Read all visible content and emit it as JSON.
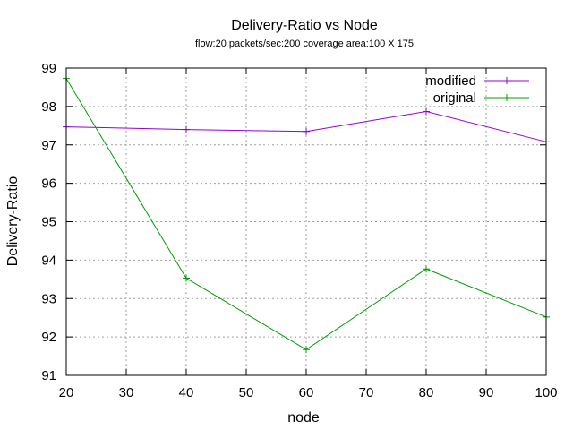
{
  "chart_data": {
    "type": "line",
    "title": "Delivery-Ratio vs Node",
    "subtitle": "flow:20  packets/sec:200  coverage area:100 X 175",
    "xlabel": "node",
    "ylabel": "Delivery-Ratio",
    "xlim": [
      20,
      100
    ],
    "ylim": [
      91,
      99
    ],
    "xticks": [
      20,
      30,
      40,
      50,
      60,
      70,
      80,
      90,
      100
    ],
    "yticks": [
      91,
      92,
      93,
      94,
      95,
      96,
      97,
      98,
      99
    ],
    "grid": true,
    "legend_position": "top-right",
    "series": [
      {
        "name": "modified",
        "color": "#9400d3",
        "points": [
          [
            20,
            97.47
          ],
          [
            40,
            97.4
          ],
          [
            60,
            97.35
          ],
          [
            80,
            97.87
          ],
          [
            100,
            97.08
          ]
        ]
      },
      {
        "name": "original",
        "color": "#009e00",
        "points": [
          [
            20,
            98.73
          ],
          [
            40,
            93.53
          ],
          [
            60,
            91.67
          ],
          [
            80,
            93.77
          ],
          [
            100,
            92.52
          ]
        ]
      }
    ]
  }
}
